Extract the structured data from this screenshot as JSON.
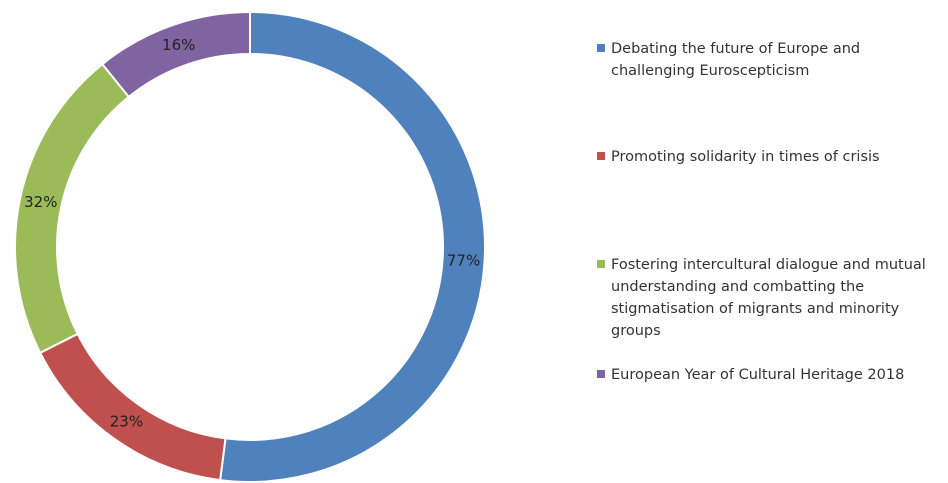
{
  "chart_data": {
    "type": "pie",
    "title": "",
    "donut": true,
    "legend_position": "right",
    "categories": [
      "Debating the future of Europe and challenging Euroscepticism",
      "Promoting solidarity in times of crisis",
      "Fostering intercultural dialogue and mutual understanding and combatting the stigmatisation of migrants and minority groups",
      "European Year of Cultural Heritage 2018"
    ],
    "values": [
      77,
      23,
      32,
      16
    ],
    "labels": [
      "77%",
      "23%",
      "32%",
      "16%"
    ],
    "colors": [
      "#4F81BD",
      "#C0504D",
      "#9BBB59",
      "#8064A2"
    ]
  },
  "legend": {
    "items": [
      {
        "label": "Debating the future of Europe and challenging Euroscepticism",
        "color": "#4F81BD"
      },
      {
        "label": "Promoting solidarity in times of crisis",
        "color": "#C0504D"
      },
      {
        "label": "Fostering intercultural dialogue and mutual understanding and combatting the stigmatisation of migrants and minority groups",
        "color": "#9BBB59"
      },
      {
        "label": "European Year of Cultural Heritage 2018",
        "color": "#8064A2"
      }
    ]
  }
}
